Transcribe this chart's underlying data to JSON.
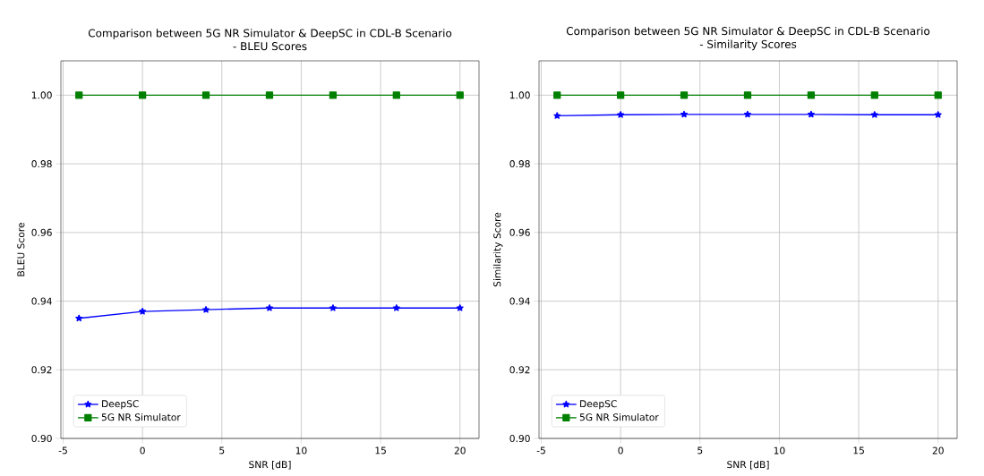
{
  "chart_data": [
    {
      "type": "line",
      "title": "Comparison between 5G NR Simulator & DeepSC in CDL-B Scenario",
      "subtitle": "- BLEU Scores",
      "xlabel": "SNR [dB]",
      "ylabel": "BLEU Score",
      "x": [
        -4,
        0,
        4,
        8,
        12,
        16,
        20
      ],
      "series": [
        {
          "name": "DeepSC",
          "color": "#0000ff",
          "marker": "star",
          "values": [
            0.935,
            0.937,
            0.9375,
            0.938,
            0.938,
            0.938,
            0.938
          ]
        },
        {
          "name": "5G NR Simulator",
          "color": "#008000",
          "marker": "square",
          "values": [
            1.0,
            1.0,
            1.0,
            1.0,
            1.0,
            1.0,
            1.0
          ]
        }
      ],
      "xlim": [
        -5.14,
        21.2
      ],
      "ylim": [
        0.9,
        1.01
      ],
      "xticks": [
        -5,
        0,
        5,
        10,
        15,
        20
      ],
      "yticks": [
        "0.90",
        "0.92",
        "0.94",
        "0.96",
        "0.98",
        "1.00"
      ],
      "grid": true,
      "legend": "bottom left"
    },
    {
      "type": "line",
      "title": "Comparison between 5G NR Simulator & DeepSC in CDL-B Scenario",
      "subtitle": "- Similarity Scores",
      "xlabel": "SNR [dB]",
      "ylabel": "Similarity Score",
      "x": [
        -4,
        0,
        4,
        8,
        12,
        16,
        20
      ],
      "series": [
        {
          "name": "DeepSC",
          "color": "#0000ff",
          "marker": "star",
          "values": [
            0.994,
            0.9943,
            0.9944,
            0.9944,
            0.9944,
            0.9943,
            0.9943
          ]
        },
        {
          "name": "5G NR Simulator",
          "color": "#008000",
          "marker": "square",
          "values": [
            1.0,
            1.0,
            1.0,
            1.0,
            1.0,
            1.0,
            1.0
          ]
        }
      ],
      "xlim": [
        -5.14,
        21.2
      ],
      "ylim": [
        0.9,
        1.01
      ],
      "xticks": [
        -5,
        0,
        5,
        10,
        15,
        20
      ],
      "yticks": [
        {
          "value": 0.9,
          "label": "0.90"
        },
        {
          "value": 0.92,
          "label": "0.92"
        },
        {
          "value": 0.94,
          "label": "0.94"
        },
        {
          "value": 0.96,
          "label": "0.96"
        },
        {
          "value": 0.98,
          "label": "0.98"
        },
        {
          "value": 1.0,
          "label": "1.00"
        }
      ],
      "grid": true,
      "legend": "bottom left"
    }
  ]
}
